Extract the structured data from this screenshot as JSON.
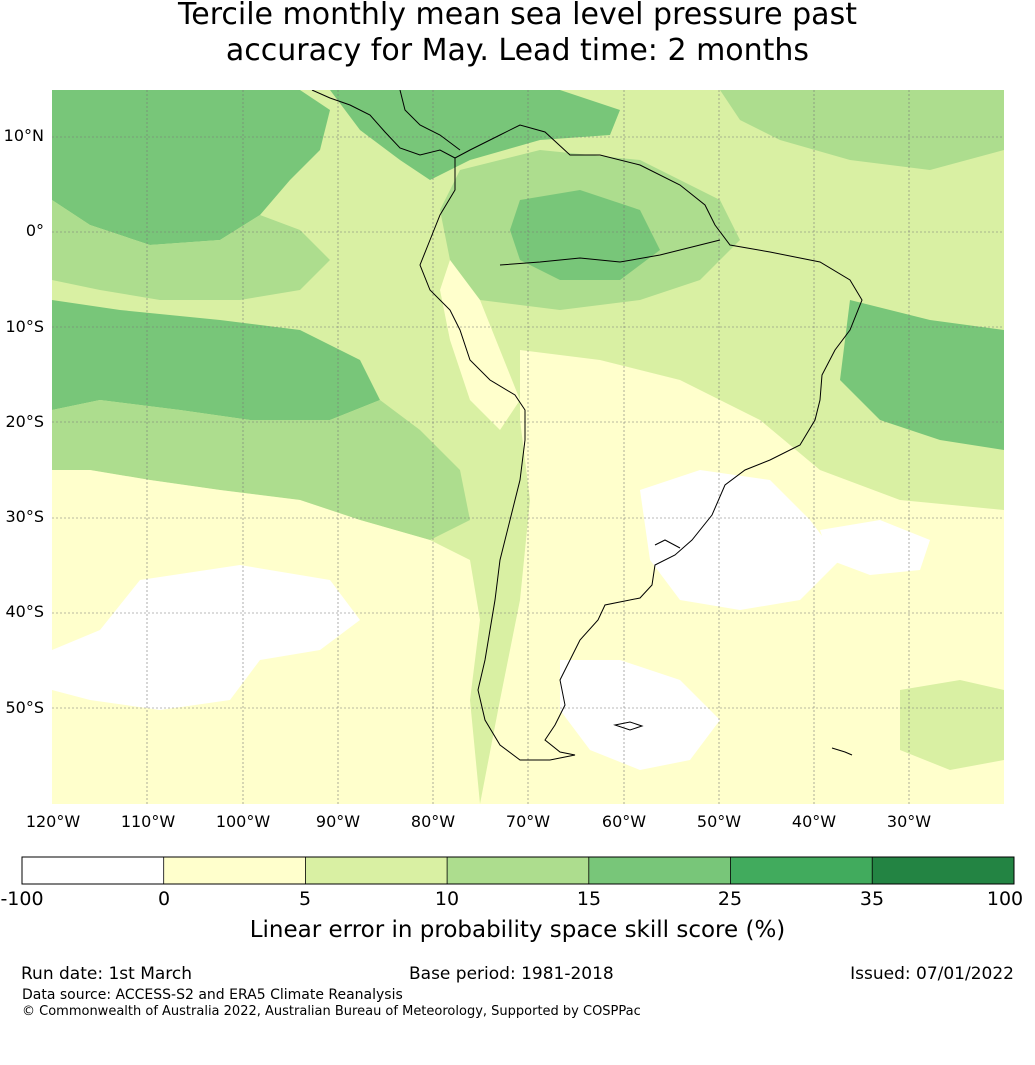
{
  "title_line1": "Tercile monthly mean sea level pressure past",
  "title_line2": "accuracy for May. Lead time: 2 months",
  "map": {
    "lat_labels": [
      "10°N",
      "0°",
      "10°S",
      "20°S",
      "30°S",
      "40°S",
      "50°S"
    ],
    "lon_labels": [
      "120°W",
      "110°W",
      "100°W",
      "90°W",
      "80°W",
      "70°W",
      "60°W",
      "50°W",
      "40°W",
      "30°W"
    ],
    "extent": {
      "lon_min": -125.5,
      "lon_max": -25.5,
      "lat_min": -60,
      "lat_max": 15
    }
  },
  "colorbar": {
    "ticks": [
      "-100",
      "0",
      "5",
      "10",
      "15",
      "25",
      "35",
      "100"
    ],
    "colors": [
      "#ffffff",
      "#ffffcc",
      "#d9f0a3",
      "#addd8e",
      "#78c679",
      "#41ab5d",
      "#238443"
    ],
    "label": "Linear error in probability space skill score (%)"
  },
  "footer": {
    "run_date": "Run date: 1st March",
    "base_period": "Base period: 1981-2018",
    "issued": "Issued: 07/01/2022",
    "source": "Data source: ACCESS-S2 and ERA5 Climate Reanalysis",
    "copyright": "© Commonwealth of Australia 2022, Australian Bureau of Meteorology, Supported by COSPPac"
  }
}
